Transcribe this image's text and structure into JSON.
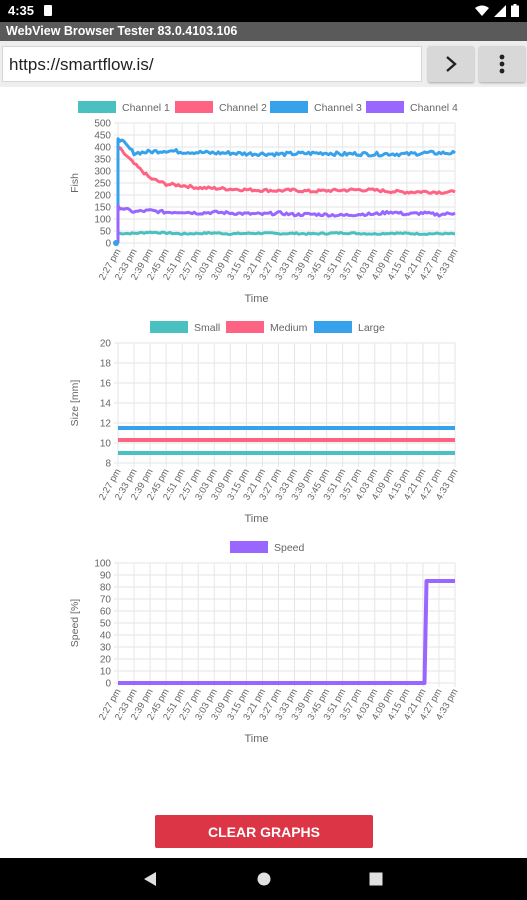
{
  "status": {
    "time": "4:35"
  },
  "app": {
    "title": "WebView Browser Tester 83.0.4103.106"
  },
  "address": {
    "url": "https://smartflow.is/"
  },
  "time_labels": [
    "2:27 pm",
    "2:33 pm",
    "2:39 pm",
    "2:45 pm",
    "2:51 pm",
    "2:57 pm",
    "3:03 pm",
    "3:09 pm",
    "3:15 pm",
    "3:21 pm",
    "3:27 pm",
    "3:33 pm",
    "3:39 pm",
    "3:45 pm",
    "3:51 pm",
    "3:57 pm",
    "4:03 pm",
    "4:09 pm",
    "4:15 pm",
    "4:21 pm",
    "4:27 pm",
    "4:33 pm"
  ],
  "charts": {
    "fish": {
      "ylabel": "Fish",
      "xlabel": "Time",
      "legend": [
        {
          "name": "Channel 1",
          "color": "#4bc0c0"
        },
        {
          "name": "Channel 2",
          "color": "#ff6384"
        },
        {
          "name": "Channel 3",
          "color": "#36a2eb"
        },
        {
          "name": "Channel 4",
          "color": "#9966ff"
        }
      ]
    },
    "size": {
      "ylabel": "Size [mm]",
      "xlabel": "Time",
      "legend": [
        {
          "name": "Small",
          "color": "#4bc0c0"
        },
        {
          "name": "Medium",
          "color": "#ff6384"
        },
        {
          "name": "Large",
          "color": "#36a2eb"
        }
      ]
    },
    "speed": {
      "ylabel": "Speed [%]",
      "xlabel": "Time",
      "legend": [
        {
          "name": "Speed",
          "color": "#9966ff"
        }
      ]
    }
  },
  "actions": {
    "clear_label": "CLEAR GRAPHS"
  },
  "chart_data": [
    {
      "type": "line",
      "ylabel": "Fish",
      "xlabel": "Time",
      "ylim": [
        0,
        500
      ],
      "yticks": [
        0,
        50,
        100,
        150,
        200,
        250,
        300,
        350,
        400,
        450,
        500
      ],
      "categories": [
        "2:27 pm",
        "2:33 pm",
        "2:39 pm",
        "2:45 pm",
        "2:51 pm",
        "2:57 pm",
        "3:03 pm",
        "3:09 pm",
        "3:15 pm",
        "3:21 pm",
        "3:27 pm",
        "3:33 pm",
        "3:39 pm",
        "3:45 pm",
        "3:51 pm",
        "3:57 pm",
        "4:03 pm",
        "4:09 pm",
        "4:15 pm",
        "4:21 pm",
        "4:27 pm",
        "4:33 pm"
      ],
      "series": [
        {
          "name": "Channel 1",
          "values": [
            40,
            40,
            45,
            42,
            38,
            40,
            42,
            38,
            40,
            41,
            39,
            40,
            38,
            40,
            42,
            40,
            38,
            41,
            40,
            38,
            39,
            38
          ]
        },
        {
          "name": "Channel 2",
          "values": [
            400,
            330,
            270,
            245,
            240,
            230,
            228,
            225,
            222,
            220,
            218,
            220,
            215,
            218,
            220,
            222,
            220,
            215,
            212,
            214,
            212,
            212
          ]
        },
        {
          "name": "Channel 3",
          "values": [
            440,
            375,
            380,
            385,
            380,
            378,
            375,
            375,
            372,
            372,
            370,
            372,
            374,
            375,
            370,
            372,
            370,
            372,
            370,
            375,
            375,
            375
          ]
        },
        {
          "name": "Channel 4",
          "values": [
            150,
            130,
            135,
            128,
            130,
            125,
            128,
            125,
            122,
            120,
            125,
            118,
            120,
            118,
            115,
            120,
            120,
            130,
            120,
            125,
            118,
            125
          ]
        }
      ]
    },
    {
      "type": "line",
      "ylabel": "Size [mm]",
      "xlabel": "Time",
      "ylim": [
        8,
        20
      ],
      "yticks": [
        8,
        10,
        12,
        14,
        16,
        18,
        20
      ],
      "categories": [
        "2:27 pm",
        "2:33 pm",
        "2:39 pm",
        "2:45 pm",
        "2:51 pm",
        "2:57 pm",
        "3:03 pm",
        "3:09 pm",
        "3:15 pm",
        "3:21 pm",
        "3:27 pm",
        "3:33 pm",
        "3:39 pm",
        "3:45 pm",
        "3:51 pm",
        "3:57 pm",
        "4:03 pm",
        "4:09 pm",
        "4:15 pm",
        "4:21 pm",
        "4:27 pm",
        "4:33 pm"
      ],
      "series": [
        {
          "name": "Small",
          "values": [
            9,
            9,
            9,
            9,
            9,
            9,
            9,
            9,
            9,
            9,
            9,
            9,
            9,
            9,
            9,
            9,
            9,
            9,
            9,
            9,
            9,
            9
          ]
        },
        {
          "name": "Medium",
          "values": [
            10.3,
            10.3,
            10.3,
            10.3,
            10.3,
            10.3,
            10.3,
            10.3,
            10.3,
            10.3,
            10.3,
            10.3,
            10.3,
            10.3,
            10.3,
            10.3,
            10.3,
            10.3,
            10.3,
            10.3,
            10.3,
            10.3
          ]
        },
        {
          "name": "Large",
          "values": [
            11.5,
            11.5,
            11.5,
            11.5,
            11.5,
            11.5,
            11.5,
            11.5,
            11.5,
            11.5,
            11.5,
            11.5,
            11.5,
            11.5,
            11.5,
            11.5,
            11.5,
            11.5,
            11.5,
            11.5,
            11.5,
            11.5
          ]
        }
      ]
    },
    {
      "type": "line",
      "ylabel": "Speed [%]",
      "xlabel": "Time",
      "ylim": [
        0,
        100
      ],
      "yticks": [
        0,
        10,
        20,
        30,
        40,
        50,
        60,
        70,
        80,
        90,
        100
      ],
      "categories": [
        "2:27 pm",
        "2:33 pm",
        "2:39 pm",
        "2:45 pm",
        "2:51 pm",
        "2:57 pm",
        "3:03 pm",
        "3:09 pm",
        "3:15 pm",
        "3:21 pm",
        "3:27 pm",
        "3:33 pm",
        "3:39 pm",
        "3:45 pm",
        "3:51 pm",
        "3:57 pm",
        "4:03 pm",
        "4:09 pm",
        "4:15 pm",
        "4:21 pm",
        "4:27 pm",
        "4:33 pm"
      ],
      "series": [
        {
          "name": "Speed",
          "values": [
            0,
            0,
            0,
            0,
            0,
            0,
            0,
            0,
            0,
            0,
            0,
            0,
            0,
            0,
            0,
            0,
            0,
            0,
            0,
            0,
            85,
            85
          ]
        }
      ]
    }
  ]
}
